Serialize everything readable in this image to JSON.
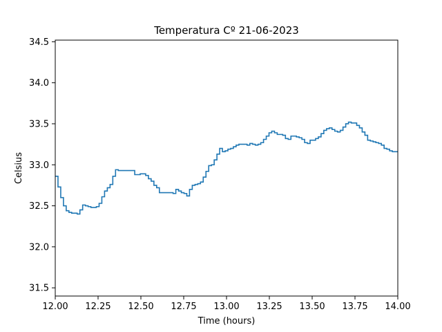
{
  "chart_data": {
    "type": "line",
    "drawstyle": "steps-post",
    "title": "Temperatura Cº 21-06-2023",
    "xlabel": "Time (hours)",
    "ylabel": "Celsius",
    "xlim": [
      12.0,
      14.0
    ],
    "ylim": [
      31.4,
      34.52
    ],
    "xticks": [
      12.0,
      12.25,
      12.5,
      12.75,
      13.0,
      13.25,
      13.5,
      13.75,
      14.0
    ],
    "xtick_labels": [
      "12.00",
      "12.25",
      "12.50",
      "12.75",
      "13.00",
      "13.25",
      "13.50",
      "13.75",
      "14.00"
    ],
    "yticks": [
      31.5,
      32.0,
      32.5,
      33.0,
      33.5,
      34.0,
      34.5
    ],
    "ytick_labels": [
      "31.5",
      "32.0",
      "32.5",
      "33.0",
      "33.5",
      "34.0",
      "34.5"
    ],
    "grid": false,
    "line_color": "#1f77b4",
    "series": [
      {
        "x": [
          12.0,
          12.016,
          12.032,
          12.048,
          12.064,
          12.08,
          12.096,
          12.112,
          12.128,
          12.144,
          12.16,
          12.176,
          12.192,
          12.208,
          12.224,
          12.24,
          12.256,
          12.272,
          12.288,
          12.304,
          12.32,
          12.336,
          12.352,
          12.368,
          12.384,
          12.4,
          12.416,
          12.432,
          12.448,
          12.464,
          12.48,
          12.496,
          12.512,
          12.528,
          12.544,
          12.56,
          12.576,
          12.592,
          12.608,
          12.624,
          12.64,
          12.656,
          12.672,
          12.688,
          12.704,
          12.72,
          12.736,
          12.752,
          12.768,
          12.784,
          12.8,
          12.816,
          12.832,
          12.848,
          12.864,
          12.88,
          12.896,
          12.912,
          12.928,
          12.944,
          12.96,
          12.976,
          12.992,
          13.008,
          13.024,
          13.04,
          13.056,
          13.072,
          13.088,
          13.104,
          13.12,
          13.136,
          13.152,
          13.168,
          13.184,
          13.2,
          13.216,
          13.232,
          13.248,
          13.264,
          13.28,
          13.296,
          13.312,
          13.328,
          13.344,
          13.36,
          13.376,
          13.392,
          13.408,
          13.424,
          13.44,
          13.456,
          13.472,
          13.488,
          13.504,
          13.52,
          13.536,
          13.552,
          13.568,
          13.584,
          13.6,
          13.616,
          13.632,
          13.648,
          13.664,
          13.68,
          13.696,
          13.712,
          13.728,
          13.744,
          13.76,
          13.776,
          13.792,
          13.808,
          13.824,
          13.84,
          13.856,
          13.872,
          13.888,
          13.904,
          13.92,
          13.936,
          13.952,
          13.968,
          13.984,
          14.0
        ],
        "y": [
          32.86,
          32.73,
          32.6,
          32.5,
          32.44,
          32.42,
          32.41,
          32.41,
          32.4,
          32.45,
          32.51,
          32.5,
          32.49,
          32.48,
          32.48,
          32.49,
          32.53,
          32.61,
          32.68,
          32.72,
          32.76,
          32.86,
          32.94,
          32.93,
          32.93,
          32.93,
          32.93,
          32.93,
          32.93,
          32.88,
          32.88,
          32.89,
          32.89,
          32.87,
          32.83,
          32.8,
          32.75,
          32.72,
          32.66,
          32.66,
          32.66,
          32.66,
          32.66,
          32.65,
          32.7,
          32.68,
          32.66,
          32.65,
          32.62,
          32.7,
          32.75,
          32.76,
          32.77,
          32.79,
          32.85,
          32.92,
          32.99,
          33.0,
          33.06,
          33.13,
          33.2,
          33.16,
          33.17,
          33.19,
          33.2,
          33.22,
          33.24,
          33.25,
          33.25,
          33.25,
          33.24,
          33.26,
          33.25,
          33.24,
          33.25,
          33.27,
          33.31,
          33.35,
          33.39,
          33.41,
          33.39,
          33.37,
          33.37,
          33.36,
          33.32,
          33.31,
          33.35,
          33.35,
          33.34,
          33.33,
          33.31,
          33.27,
          33.26,
          33.3,
          33.3,
          33.32,
          33.34,
          33.38,
          33.42,
          33.44,
          33.45,
          33.43,
          33.41,
          33.4,
          33.42,
          33.46,
          33.5,
          33.52,
          33.51,
          33.51,
          33.48,
          33.45,
          33.4,
          33.36,
          33.3,
          33.29,
          33.28,
          33.27,
          33.26,
          33.24,
          33.2,
          33.19,
          33.17,
          33.16,
          33.16,
          33.16
        ]
      }
    ]
  }
}
